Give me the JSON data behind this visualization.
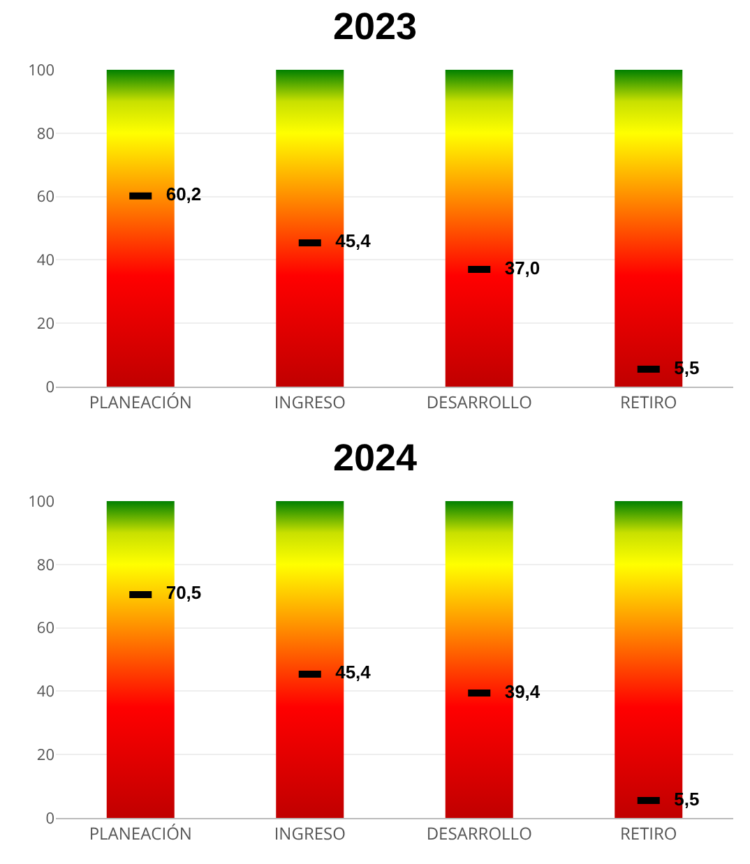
{
  "chart_data": [
    {
      "type": "bar",
      "title": "2023",
      "categories": [
        "PLANEACIÓN",
        "INGRESO",
        "DESARROLLO",
        "RETIRO"
      ],
      "ylim": [
        0,
        100
      ],
      "yticks": [
        0,
        20,
        40,
        60,
        80,
        100
      ],
      "grid": "y",
      "series": [
        {
          "color": "#ff0000",
          "values": [
            100,
            100,
            100,
            100
          ]
        },
        {
          "type": "scatter",
          "color": "#000000",
          "values": [
            60.2,
            45.4,
            37.0,
            5.5
          ],
          "value_labels": [
            "60,2",
            "45,4",
            "37,0",
            "5,5"
          ]
        }
      ]
    },
    {
      "type": "bar",
      "title": "2024",
      "categories": [
        "PLANEACIÓN",
        "INGRESO",
        "DESARROLLO",
        "RETIRO"
      ],
      "ylim": [
        0,
        100
      ],
      "yticks": [
        0,
        20,
        40,
        60,
        80,
        100
      ],
      "grid": "y",
      "series": [
        {
          "color": "#ff0000",
          "values": [
            100,
            100,
            100,
            100
          ]
        },
        {
          "type": "scatter",
          "color": "#000000",
          "values": [
            70.5,
            45.4,
            39.4,
            5.5
          ],
          "value_labels": [
            "70,5",
            "45,4",
            "39,4",
            "5,5"
          ]
        }
      ]
    }
  ]
}
